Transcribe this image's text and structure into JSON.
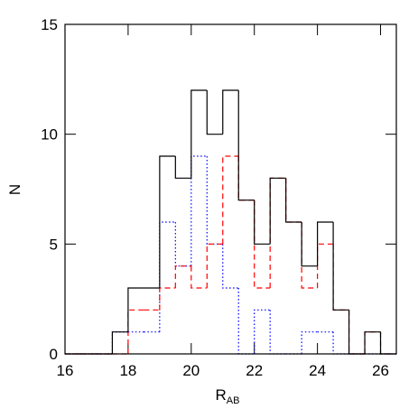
{
  "chart_data": {
    "type": "histogram",
    "xlabel": "R",
    "xlabel_subscript": "AB",
    "ylabel": "N",
    "bins": [
      16,
      16.5,
      17,
      17.5,
      18,
      18.5,
      19,
      19.5,
      20,
      20.5,
      21,
      21.5,
      22,
      22.5,
      23,
      23.5,
      24,
      24.5,
      25,
      25.5,
      26,
      26.5
    ],
    "series": [
      {
        "color": "#000000",
        "dash": "none",
        "values": [
          0,
          0,
          0,
          1,
          3,
          3,
          9,
          8,
          12,
          10,
          12,
          7,
          5,
          8,
          6,
          4,
          6,
          2,
          0,
          1,
          0
        ]
      },
      {
        "color": "#ff0000",
        "dash": "6,4",
        "values": [
          0,
          0,
          0,
          0,
          2,
          2,
          3,
          4,
          3,
          5,
          9,
          7,
          3,
          8,
          6,
          3,
          5,
          2,
          0,
          1,
          0
        ]
      },
      {
        "color": "#0000ff",
        "dash": "1.5,2.5",
        "values": [
          0,
          0,
          0,
          1,
          1,
          1,
          6,
          4,
          9,
          5,
          3,
          0,
          2,
          0,
          0,
          1,
          1,
          0,
          0,
          0,
          0
        ]
      }
    ],
    "xlim": [
      16,
      26.5
    ],
    "ylim": [
      0,
      15
    ],
    "xticks": [
      16,
      18,
      20,
      22,
      24,
      26
    ],
    "yticks": [
      0,
      5,
      10,
      15
    ]
  }
}
